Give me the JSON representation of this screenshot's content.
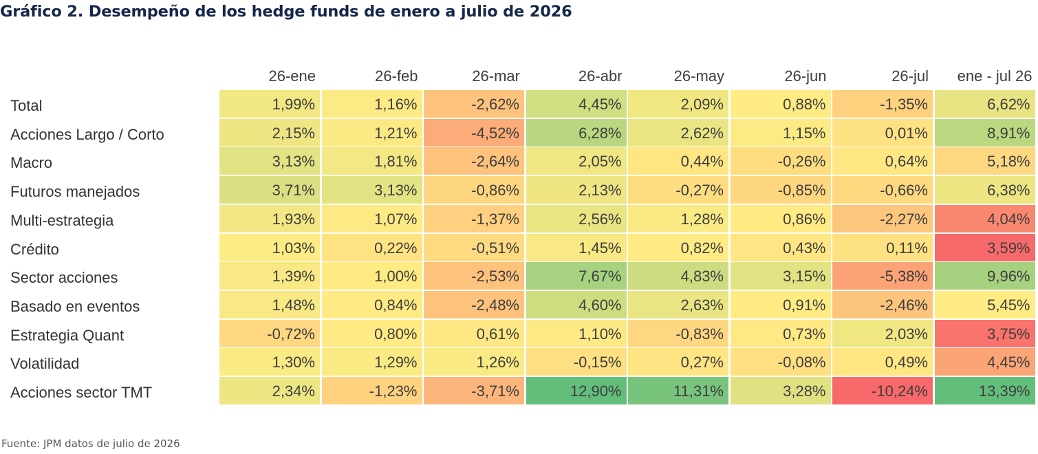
{
  "title": "Gráfico 2. Desempeño de los hedge funds de enero a julio de 2026",
  "source": "Fuente: JPM datos de julio de 2026",
  "chart_data": {
    "type": "heatmap",
    "title": "Gráfico 2. Desempeño de los hedge funds de enero a julio de 2026",
    "columns": [
      "26-ene",
      "26-feb",
      "26-mar",
      "26-abr",
      "26-may",
      "26-jun",
      "26-jul",
      "ene - jul 26"
    ],
    "rows": [
      {
        "label": "Total",
        "values": [
          1.99,
          1.16,
          -2.62,
          4.45,
          2.09,
          0.88,
          -1.35,
          6.62
        ],
        "display": [
          "1,99%",
          "1,16%",
          "-2,62%",
          "4,45%",
          "2,09%",
          "0,88%",
          "-1,35%",
          "6,62%"
        ]
      },
      {
        "label": "Acciones Largo / Corto",
        "values": [
          2.15,
          1.21,
          -4.52,
          6.28,
          2.62,
          1.15,
          0.01,
          8.91
        ],
        "display": [
          "2,15%",
          "1,21%",
          "-4,52%",
          "6,28%",
          "2,62%",
          "1,15%",
          "0,01%",
          "8,91%"
        ]
      },
      {
        "label": "Macro",
        "values": [
          3.13,
          1.81,
          -2.64,
          2.05,
          0.44,
          -0.26,
          0.64,
          5.18
        ],
        "display": [
          "3,13%",
          "1,81%",
          "-2,64%",
          "2,05%",
          "0,44%",
          "-0,26%",
          "0,64%",
          "5,18%"
        ]
      },
      {
        "label": "Futuros manejados",
        "values": [
          3.71,
          3.13,
          -0.86,
          2.13,
          -0.27,
          -0.85,
          -0.66,
          6.38
        ],
        "display": [
          "3,71%",
          "3,13%",
          "-0,86%",
          "2,13%",
          "-0,27%",
          "-0,85%",
          "-0,66%",
          "6,38%"
        ]
      },
      {
        "label": "Multi-estrategia",
        "values": [
          1.93,
          1.07,
          -1.37,
          2.56,
          1.28,
          0.86,
          -2.27,
          4.04
        ],
        "display": [
          "1,93%",
          "1,07%",
          "-1,37%",
          "2,56%",
          "1,28%",
          "0,86%",
          "-2,27%",
          "4,04%"
        ]
      },
      {
        "label": "Crédito",
        "values": [
          1.03,
          0.22,
          -0.51,
          1.45,
          0.82,
          0.43,
          0.11,
          3.59
        ],
        "display": [
          "1,03%",
          "0,22%",
          "-0,51%",
          "1,45%",
          "0,82%",
          "0,43%",
          "0,11%",
          "3,59%"
        ]
      },
      {
        "label": "Sector acciones",
        "values": [
          1.39,
          1.0,
          -2.53,
          7.67,
          4.83,
          3.15,
          -5.38,
          9.96
        ],
        "display": [
          "1,39%",
          "1,00%",
          "-2,53%",
          "7,67%",
          "4,83%",
          "3,15%",
          "-5,38%",
          "9,96%"
        ]
      },
      {
        "label": "Basado en eventos",
        "values": [
          1.48,
          0.84,
          -2.48,
          4.6,
          2.63,
          0.91,
          -2.46,
          5.45
        ],
        "display": [
          "1,48%",
          "0,84%",
          "-2,48%",
          "4,60%",
          "2,63%",
          "0,91%",
          "-2,46%",
          "5,45%"
        ]
      },
      {
        "label": "Estrategia Quant",
        "values": [
          -0.72,
          0.8,
          0.61,
          1.1,
          -0.83,
          0.73,
          2.03,
          3.75
        ],
        "display": [
          "-0,72%",
          "0,80%",
          "0,61%",
          "1,10%",
          "-0,83%",
          "0,73%",
          "2,03%",
          "3,75%"
        ]
      },
      {
        "label": "Volatilidad",
        "values": [
          1.3,
          1.29,
          1.26,
          -0.15,
          0.27,
          -0.08,
          0.49,
          4.45
        ],
        "display": [
          "1,30%",
          "1,29%",
          "1,26%",
          "-0,15%",
          "0,27%",
          "-0,08%",
          "0,49%",
          "4,45%"
        ]
      },
      {
        "label": "Acciones sector TMT",
        "values": [
          2.34,
          -1.23,
          -3.71,
          12.9,
          11.31,
          3.28,
          -10.24,
          13.39
        ],
        "display": [
          "2,34%",
          "-1,23%",
          "-3,71%",
          "12,90%",
          "11,31%",
          "3,28%",
          "-10,24%",
          "13,39%"
        ]
      }
    ],
    "colors": [
      "#f8696b",
      "#ffeb84",
      "#63be7b"
    ]
  }
}
